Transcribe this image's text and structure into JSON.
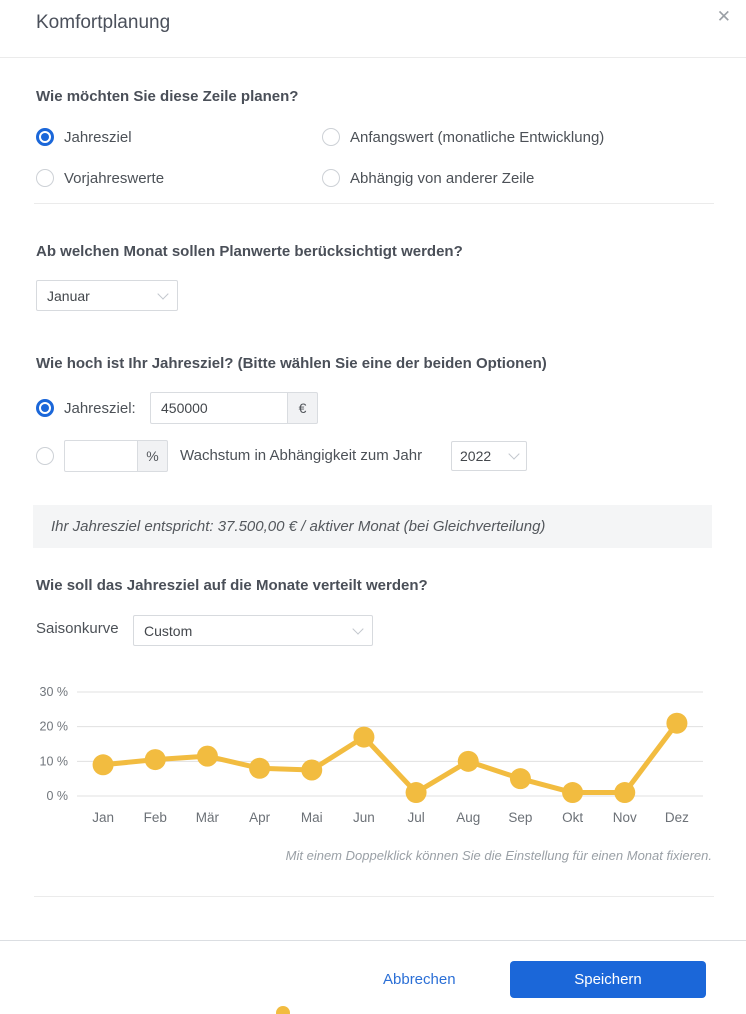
{
  "colors": {
    "accent_blue": "#1b67d9",
    "line_yellow": "#f2bc40"
  },
  "icons": {
    "close": "✕"
  },
  "modal": {
    "title": "Komfortplanung"
  },
  "plan_type": {
    "question": "Wie möchten Sie diese Zeile planen?",
    "options": [
      {
        "label": "Jahresziel",
        "selected": true
      },
      {
        "label": "Anfangswert (monatliche Entwicklung)",
        "selected": false
      },
      {
        "label": "Vorjahreswerte",
        "selected": false
      },
      {
        "label": "Abhängig von anderer Zeile",
        "selected": false
      }
    ]
  },
  "start_month": {
    "question": "Ab welchen Monat sollen Planwerte berücksichtigt werden?",
    "selected": "Januar"
  },
  "target": {
    "question": "Wie hoch ist Ihr Jahresziel? (Bitte wählen Sie eine der beiden Optionen)",
    "option_absolute": {
      "label": "Jahresziel:",
      "value": "450000",
      "unit": "€",
      "selected": true
    },
    "option_growth": {
      "value": "",
      "unit": "%",
      "label": "Wachstum in Abhängigkeit zum Jahr",
      "year": "2022",
      "selected": false
    },
    "info": "Ihr Jahresziel entspricht: 37.500,00 € / aktiver Monat (bei Gleichverteilung)"
  },
  "distribution": {
    "question": "Wie soll das Jahresziel auf die Monate verteilt werden?",
    "curve_label": "Saisonkurve",
    "curve_value": "Custom",
    "note": "Mit einem Doppelklick können Sie die Einstellung für einen Monat fixieren."
  },
  "chart_data": {
    "type": "line",
    "categories": [
      "Jan",
      "Feb",
      "Mär",
      "Apr",
      "Mai",
      "Jun",
      "Jul",
      "Aug",
      "Sep",
      "Okt",
      "Nov",
      "Dez"
    ],
    "values": [
      9,
      10.5,
      11.5,
      8,
      7.5,
      17,
      1,
      10,
      5,
      1,
      1,
      21
    ],
    "unit": "%",
    "y_tick_labels": [
      "30 %",
      "20 %",
      "10 %",
      "0 %"
    ],
    "y_tick_values": [
      30,
      20,
      10,
      0
    ],
    "ylim": [
      0,
      30
    ],
    "grid": true,
    "legend": "none",
    "line_color": "#f2bc40"
  },
  "footer": {
    "cancel_label": "Abbrechen",
    "save_label": "Speichern"
  }
}
